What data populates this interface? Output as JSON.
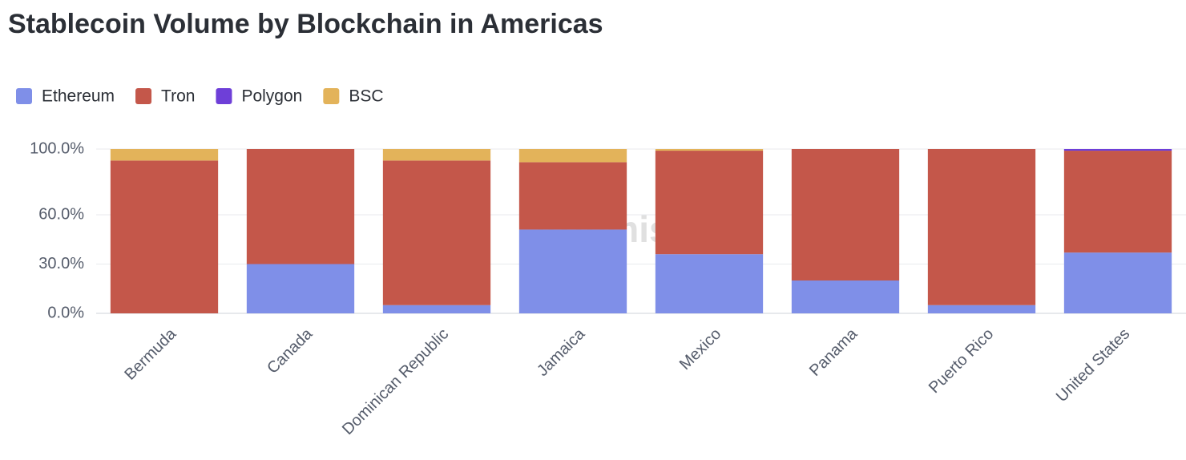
{
  "chart_data": {
    "type": "stacked_bar",
    "title": "Stablecoin Volume by Blockchain in Americas",
    "watermark": "Artemis",
    "categories": [
      "Bermuda",
      "Canada",
      "Dominican Republic",
      "Jamaica",
      "Mexico",
      "Panama",
      "Puerto Rico",
      "United States"
    ],
    "series": [
      {
        "name": "Ethereum",
        "color": "#7f8fe8",
        "values": [
          0,
          30,
          5,
          51,
          36,
          20,
          5,
          37
        ]
      },
      {
        "name": "Tron",
        "color": "#c4574a",
        "values": [
          93,
          70,
          88,
          41,
          63,
          80,
          95,
          62
        ]
      },
      {
        "name": "Polygon",
        "color": "#6e3fd8",
        "values": [
          0,
          0,
          0,
          0,
          0,
          0,
          0,
          1
        ]
      },
      {
        "name": "BSC",
        "color": "#e3b35a",
        "values": [
          7,
          0,
          7,
          8,
          1,
          0,
          0,
          0
        ]
      }
    ],
    "ylim": [
      0,
      100
    ],
    "yticks": [
      {
        "value": 0,
        "label": "0.0%"
      },
      {
        "value": 30,
        "label": "30.0%"
      },
      {
        "value": 60,
        "label": "60.0%"
      },
      {
        "value": 100,
        "label": "100.0%"
      }
    ],
    "grid": true
  }
}
